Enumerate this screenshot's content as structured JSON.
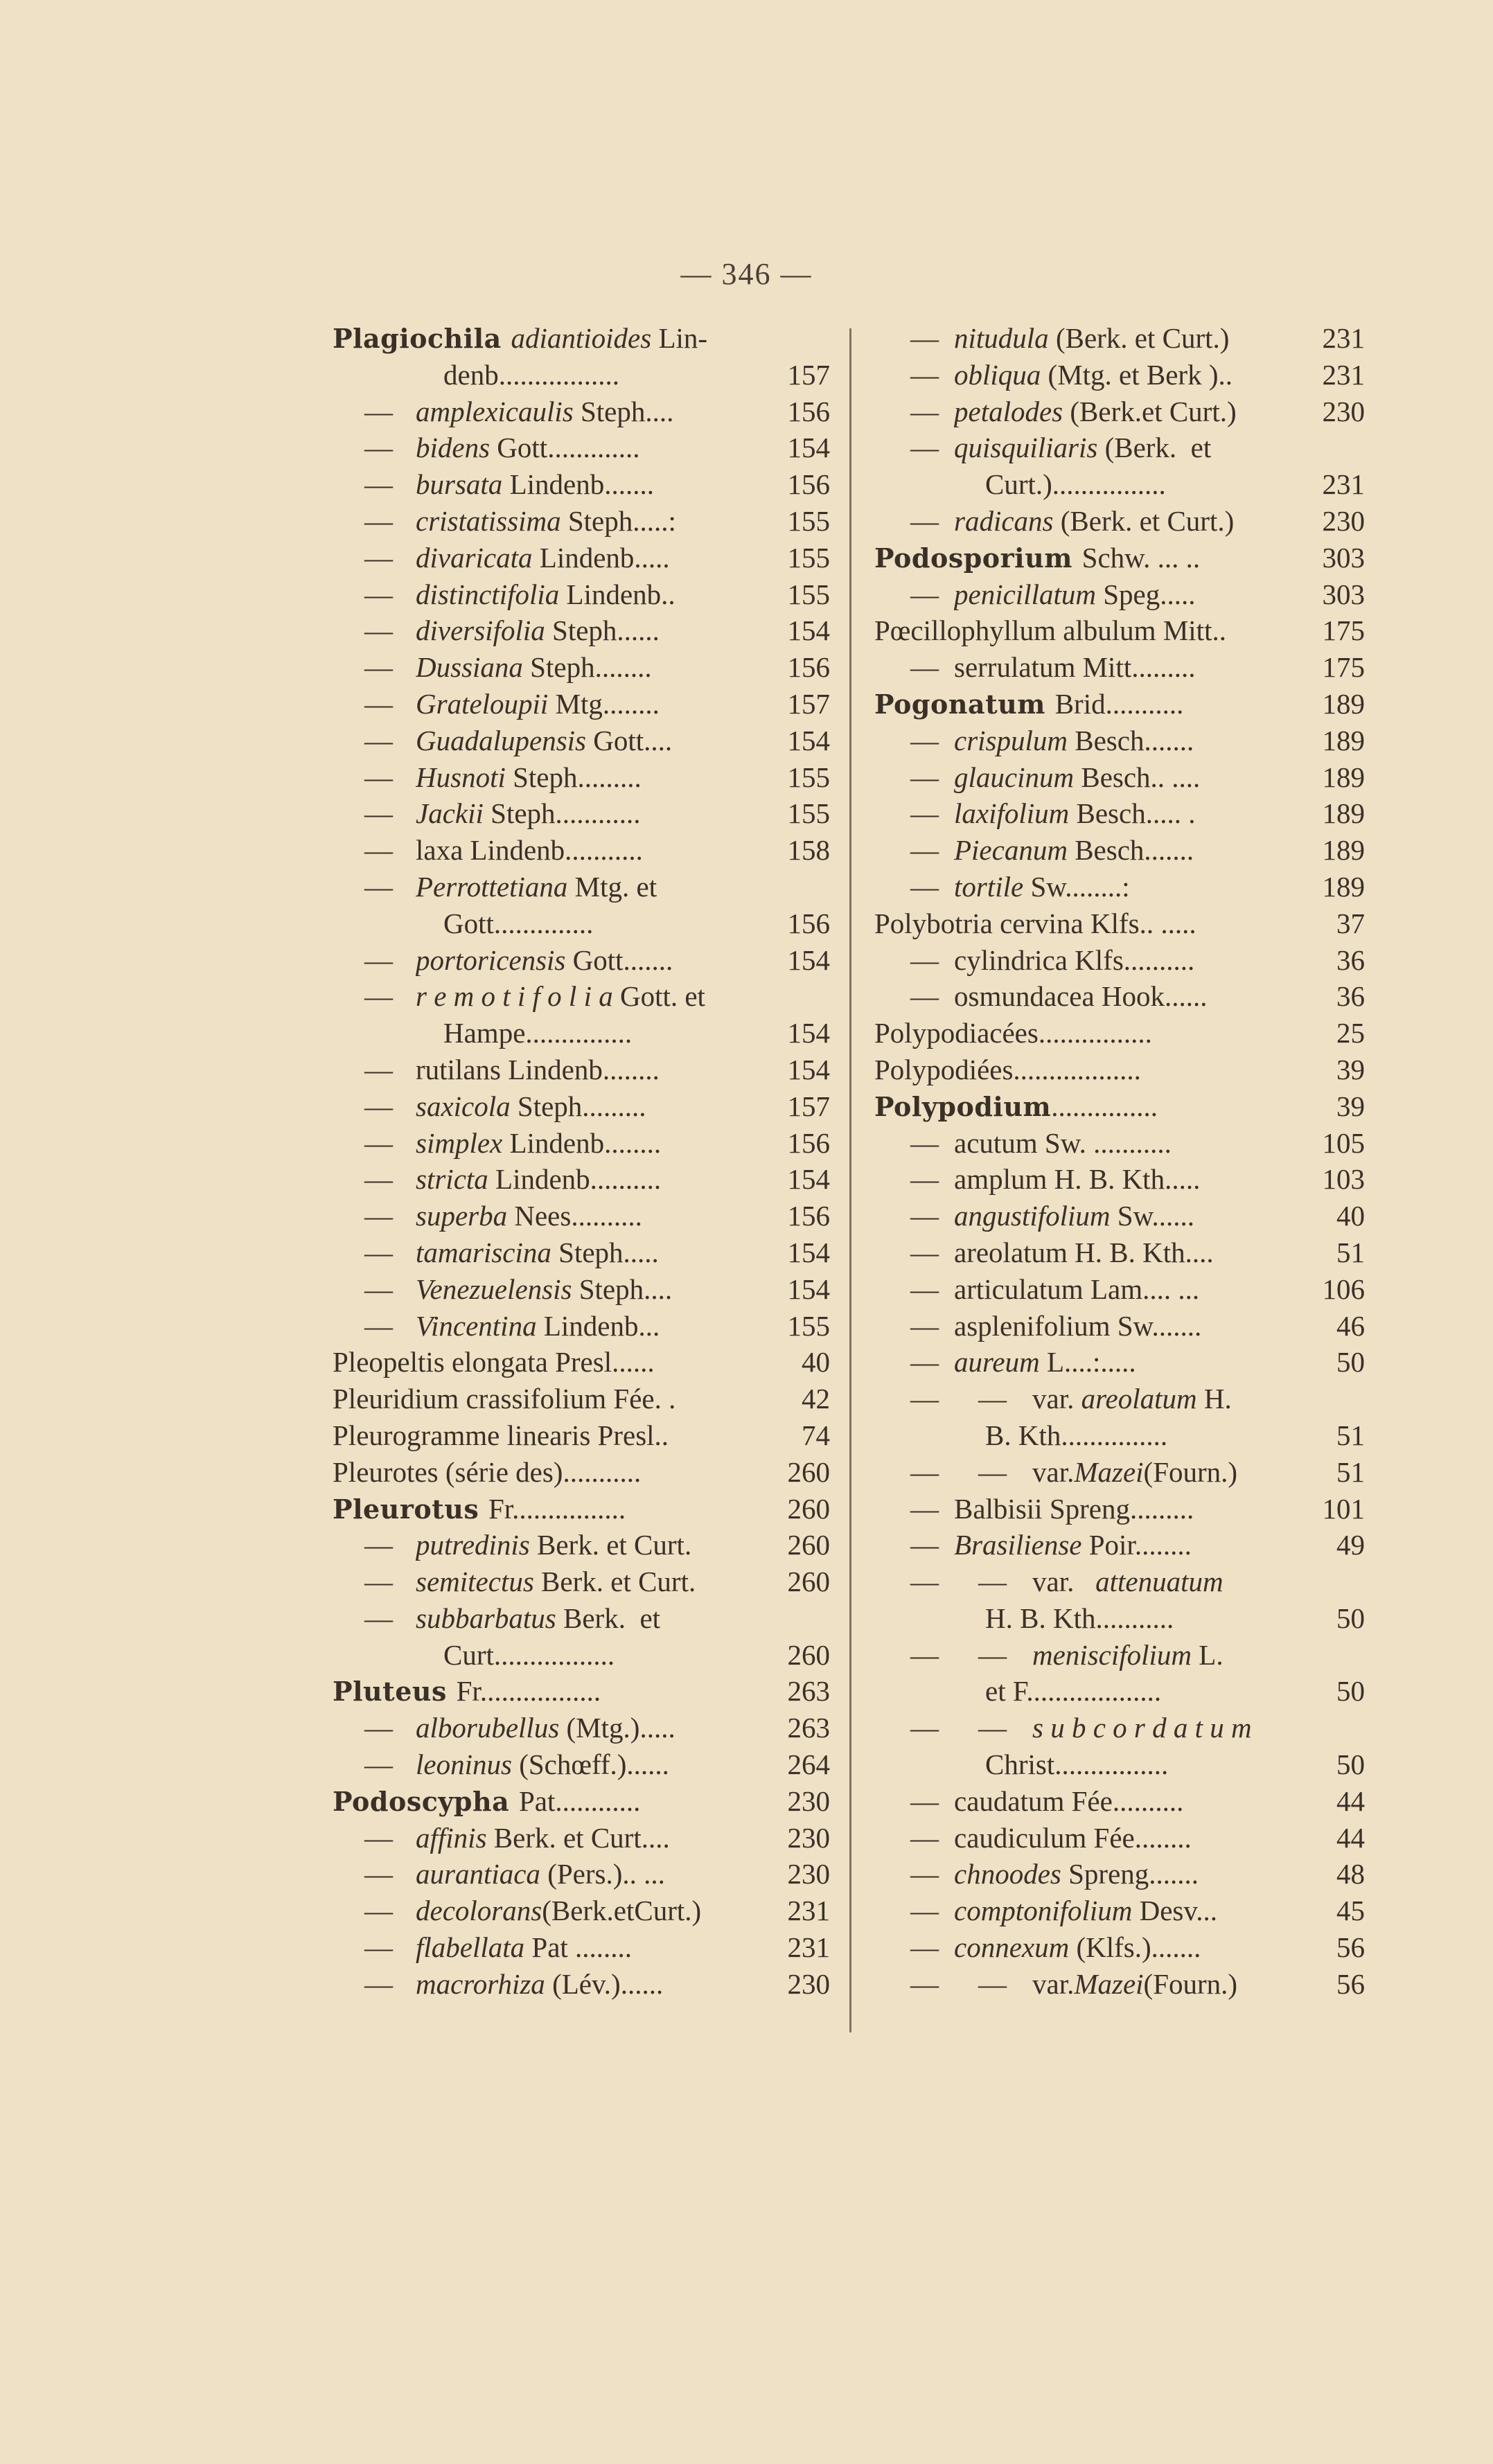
{
  "page_number": "— 346 —",
  "colors": {
    "paper": "#eee1c6",
    "ink": "#3b3027"
  },
  "left_column": [
    {
      "t": "main",
      "p": [
        [
          "b",
          "Plagiochila "
        ],
        [
          "i",
          "adiantioides "
        ],
        [
          "r",
          "Lin-"
        ]
      ],
      "n": ""
    },
    {
      "t": "cont",
      "p": [
        [
          "r",
          "denb................."
        ]
      ],
      "n": "157"
    },
    {
      "t": "sub",
      "p": [
        [
          "i",
          "amplexicaulis "
        ],
        [
          "r",
          "Steph...."
        ]
      ],
      "n": "156"
    },
    {
      "t": "sub",
      "p": [
        [
          "i",
          "bidens "
        ],
        [
          "r",
          "Gott............."
        ]
      ],
      "n": "154"
    },
    {
      "t": "sub",
      "p": [
        [
          "i",
          "bursata "
        ],
        [
          "r",
          "Lindenb......."
        ]
      ],
      "n": "156"
    },
    {
      "t": "sub",
      "p": [
        [
          "i",
          "cristatissima "
        ],
        [
          "r",
          "Steph.....:"
        ]
      ],
      "n": "155"
    },
    {
      "t": "sub",
      "p": [
        [
          "i",
          "divaricata "
        ],
        [
          "r",
          "Lindenb....."
        ]
      ],
      "n": "155"
    },
    {
      "t": "sub",
      "p": [
        [
          "i",
          "distinctifolia "
        ],
        [
          "r",
          "Lindenb.."
        ]
      ],
      "n": "155"
    },
    {
      "t": "sub",
      "p": [
        [
          "i",
          "diversifolia "
        ],
        [
          "r",
          "Steph......"
        ]
      ],
      "n": "154"
    },
    {
      "t": "sub",
      "p": [
        [
          "i",
          "Dussiana "
        ],
        [
          "r",
          "Steph........"
        ]
      ],
      "n": "156"
    },
    {
      "t": "sub",
      "p": [
        [
          "i",
          "Grateloupii "
        ],
        [
          "r",
          "Mtg........"
        ]
      ],
      "n": "157"
    },
    {
      "t": "sub",
      "p": [
        [
          "i",
          "Guadalupensis "
        ],
        [
          "r",
          "Gott...."
        ]
      ],
      "n": "154"
    },
    {
      "t": "sub",
      "p": [
        [
          "i",
          "Husnoti "
        ],
        [
          "r",
          "Steph........."
        ]
      ],
      "n": "155"
    },
    {
      "t": "sub",
      "p": [
        [
          "i",
          "Jackii "
        ],
        [
          "r",
          "Steph............"
        ]
      ],
      "n": "155"
    },
    {
      "t": "sub",
      "p": [
        [
          "r",
          "laxa Lindenb..........."
        ]
      ],
      "n": "158"
    },
    {
      "t": "sub",
      "p": [
        [
          "i",
          "Perrottetiana "
        ],
        [
          "r",
          "Mtg. et"
        ]
      ],
      "n": ""
    },
    {
      "t": "cont",
      "p": [
        [
          "r",
          "Gott.............."
        ]
      ],
      "n": "156"
    },
    {
      "t": "sub",
      "p": [
        [
          "i",
          "portoricensis "
        ],
        [
          "r",
          "Gott......."
        ]
      ],
      "n": "154"
    },
    {
      "t": "sub",
      "p": [
        [
          "i",
          "r e m o t i f o l i a "
        ],
        [
          "r",
          "Gott. et"
        ]
      ],
      "n": ""
    },
    {
      "t": "cont",
      "p": [
        [
          "r",
          "Hampe..............."
        ]
      ],
      "n": "154"
    },
    {
      "t": "sub",
      "p": [
        [
          "r",
          "rutilans Lindenb........"
        ]
      ],
      "n": "154"
    },
    {
      "t": "sub",
      "p": [
        [
          "i",
          "saxicola "
        ],
        [
          "r",
          "Steph........."
        ]
      ],
      "n": "157"
    },
    {
      "t": "sub",
      "p": [
        [
          "i",
          "simplex "
        ],
        [
          "r",
          "Lindenb........"
        ]
      ],
      "n": "156"
    },
    {
      "t": "sub",
      "p": [
        [
          "i",
          "stricta "
        ],
        [
          "r",
          "Lindenb.........."
        ]
      ],
      "n": "154"
    },
    {
      "t": "sub",
      "p": [
        [
          "i",
          "superba "
        ],
        [
          "r",
          "Nees.........."
        ]
      ],
      "n": "156"
    },
    {
      "t": "sub",
      "p": [
        [
          "i",
          "tamariscina "
        ],
        [
          "r",
          "Steph....."
        ]
      ],
      "n": "154"
    },
    {
      "t": "sub",
      "p": [
        [
          "i",
          "Venezuelensis "
        ],
        [
          "r",
          "Steph...."
        ]
      ],
      "n": "154"
    },
    {
      "t": "sub",
      "p": [
        [
          "i",
          "Vincentina "
        ],
        [
          "r",
          "Lindenb..."
        ]
      ],
      "n": "155"
    },
    {
      "t": "main",
      "p": [
        [
          "r",
          "Pleopeltis elongata Presl......"
        ]
      ],
      "n": "40"
    },
    {
      "t": "main",
      "p": [
        [
          "r",
          "Pleuridium crassifolium Fée. ."
        ]
      ],
      "n": "42"
    },
    {
      "t": "main",
      "p": [
        [
          "r",
          "Pleurogramme linearis Presl.."
        ]
      ],
      "n": "74"
    },
    {
      "t": "main",
      "p": [
        [
          "r",
          "Pleurotes (série des)..........."
        ]
      ],
      "n": "260"
    },
    {
      "t": "main",
      "p": [
        [
          "b",
          "Pleurotus "
        ],
        [
          "r",
          "Fr................"
        ]
      ],
      "n": "260"
    },
    {
      "t": "sub",
      "p": [
        [
          "i",
          "putredinis "
        ],
        [
          "r",
          "Berk. et Curt."
        ]
      ],
      "n": "260"
    },
    {
      "t": "sub",
      "p": [
        [
          "i",
          "semitectus "
        ],
        [
          "r",
          "Berk. et Curt."
        ]
      ],
      "n": "260"
    },
    {
      "t": "sub",
      "p": [
        [
          "i",
          "subbarbatus "
        ],
        [
          "r",
          "Berk.  et"
        ]
      ],
      "n": ""
    },
    {
      "t": "cont",
      "p": [
        [
          "r",
          "Curt................."
        ]
      ],
      "n": "260"
    },
    {
      "t": "main",
      "p": [
        [
          "b",
          "Pluteus "
        ],
        [
          "r",
          "Fr................."
        ]
      ],
      "n": "263"
    },
    {
      "t": "sub",
      "p": [
        [
          "i",
          "alborubellus "
        ],
        [
          "r",
          "(Mtg.)....."
        ]
      ],
      "n": "263"
    },
    {
      "t": "sub",
      "p": [
        [
          "i",
          "leoninus "
        ],
        [
          "r",
          "(Schœff.)......"
        ]
      ],
      "n": "264"
    },
    {
      "t": "main",
      "p": [
        [
          "b",
          "Podoscypha "
        ],
        [
          "r",
          "Pat............"
        ]
      ],
      "n": "230"
    },
    {
      "t": "sub",
      "p": [
        [
          "i",
          "affinis "
        ],
        [
          "r",
          "Berk. et Curt...."
        ]
      ],
      "n": "230"
    },
    {
      "t": "sub",
      "p": [
        [
          "i",
          "aurantiaca "
        ],
        [
          "r",
          "(Pers.).. ..."
        ]
      ],
      "n": "230"
    },
    {
      "t": "sub",
      "p": [
        [
          "i",
          "decolorans"
        ],
        [
          "r",
          "(Berk.etCurt.)"
        ]
      ],
      "n": "231"
    },
    {
      "t": "sub",
      "p": [
        [
          "i",
          "flabellata "
        ],
        [
          "r",
          "Pat ........"
        ]
      ],
      "n": "231"
    },
    {
      "t": "sub",
      "p": [
        [
          "i",
          "macrorhiza "
        ],
        [
          "r",
          "(Lév.)......"
        ]
      ],
      "n": "230"
    }
  ],
  "right_column": [
    {
      "t": "sub",
      "p": [
        [
          "i",
          "nitudula "
        ],
        [
          "r",
          "(Berk. et Curt.)"
        ]
      ],
      "n": "231"
    },
    {
      "t": "sub",
      "p": [
        [
          "i",
          "obliqua "
        ],
        [
          "r",
          "(Mtg. et Berk ).."
        ]
      ],
      "n": "231"
    },
    {
      "t": "sub",
      "p": [
        [
          "i",
          "petalodes "
        ],
        [
          "r",
          "(Berk.et Curt.)"
        ]
      ],
      "n": "230"
    },
    {
      "t": "sub",
      "p": [
        [
          "i",
          "quisquiliaris "
        ],
        [
          "r",
          "(Berk.  et"
        ]
      ],
      "n": ""
    },
    {
      "t": "cont",
      "p": [
        [
          "r",
          "Curt.)................"
        ]
      ],
      "n": "231"
    },
    {
      "t": "sub",
      "p": [
        [
          "i",
          "radicans "
        ],
        [
          "r",
          "(Berk. et Curt.)"
        ]
      ],
      "n": "230"
    },
    {
      "t": "main",
      "p": [
        [
          "b",
          "Podosporium "
        ],
        [
          "r",
          "Schw. ... .."
        ]
      ],
      "n": "303"
    },
    {
      "t": "sub",
      "p": [
        [
          "i",
          "penicillatum "
        ],
        [
          "r",
          "Speg....."
        ]
      ],
      "n": "303"
    },
    {
      "t": "main",
      "p": [
        [
          "r",
          "Pœcillophyllum albulum Mitt.."
        ]
      ],
      "n": "175"
    },
    {
      "t": "sub",
      "p": [
        [
          "r",
          "serrulatum Mitt........."
        ]
      ],
      "n": "175"
    },
    {
      "t": "main",
      "p": [
        [
          "b",
          "Pogonatum "
        ],
        [
          "r",
          "Brid..........."
        ]
      ],
      "n": "189"
    },
    {
      "t": "sub",
      "p": [
        [
          "i",
          "crispulum "
        ],
        [
          "r",
          "Besch......."
        ]
      ],
      "n": "189"
    },
    {
      "t": "sub",
      "p": [
        [
          "i",
          "glaucinum "
        ],
        [
          "r",
          "Besch.. ...."
        ]
      ],
      "n": "189"
    },
    {
      "t": "sub",
      "p": [
        [
          "i",
          "laxifolium "
        ],
        [
          "r",
          "Besch..... ."
        ]
      ],
      "n": "189"
    },
    {
      "t": "sub",
      "p": [
        [
          "i",
          "Piecanum "
        ],
        [
          "r",
          "Besch......."
        ]
      ],
      "n": "189"
    },
    {
      "t": "sub",
      "p": [
        [
          "i",
          "tortile "
        ],
        [
          "r",
          "Sw........:"
        ]
      ],
      "n": "189"
    },
    {
      "t": "main",
      "p": [
        [
          "r",
          "Polybotria cervina Klfs.. ....."
        ]
      ],
      "n": "37"
    },
    {
      "t": "sub",
      "p": [
        [
          "r",
          "cylindrica Klfs.........."
        ]
      ],
      "n": "36"
    },
    {
      "t": "sub",
      "p": [
        [
          "r",
          "osmundacea Hook......"
        ]
      ],
      "n": "36"
    },
    {
      "t": "main",
      "p": [
        [
          "r",
          "Polypodiacées................"
        ]
      ],
      "n": "25"
    },
    {
      "t": "main",
      "p": [
        [
          "r",
          "Polypodiées.................."
        ]
      ],
      "n": "39"
    },
    {
      "t": "main",
      "p": [
        [
          "b",
          "Polypodium"
        ],
        [
          "r",
          "..............."
        ]
      ],
      "n": "39"
    },
    {
      "t": "sub",
      "p": [
        [
          "r",
          "acutum Sw. ..........."
        ]
      ],
      "n": "105"
    },
    {
      "t": "sub",
      "p": [
        [
          "r",
          "amplum H. B. Kth....."
        ]
      ],
      "n": "103"
    },
    {
      "t": "sub",
      "p": [
        [
          "i",
          "angustifolium "
        ],
        [
          "r",
          "Sw......"
        ]
      ],
      "n": "40"
    },
    {
      "t": "sub",
      "p": [
        [
          "r",
          "areolatum H. B. Kth...."
        ]
      ],
      "n": "51"
    },
    {
      "t": "sub",
      "p": [
        [
          "r",
          "articulatum Lam.... ..."
        ]
      ],
      "n": "106"
    },
    {
      "t": "sub",
      "p": [
        [
          "r",
          "asplenifolium Sw......."
        ]
      ],
      "n": "46"
    },
    {
      "t": "sub",
      "p": [
        [
          "i",
          "aureum "
        ],
        [
          "r",
          "L....:....."
        ]
      ],
      "n": "50"
    },
    {
      "t": "subsub",
      "p": [
        [
          "r",
          "var. "
        ],
        [
          "i",
          "areolatum "
        ],
        [
          "r",
          "H."
        ]
      ],
      "n": ""
    },
    {
      "t": "cont",
      "p": [
        [
          "r",
          "B. Kth..............."
        ]
      ],
      "n": "51"
    },
    {
      "t": "subsub",
      "p": [
        [
          "r",
          "var."
        ],
        [
          "i",
          "Mazei"
        ],
        [
          "r",
          "(Fourn.)"
        ]
      ],
      "n": "51"
    },
    {
      "t": "sub",
      "p": [
        [
          "r",
          "Balbisii Spreng........."
        ]
      ],
      "n": "101"
    },
    {
      "t": "sub",
      "p": [
        [
          "i",
          "Brasiliense "
        ],
        [
          "r",
          "Poir........"
        ]
      ],
      "n": "49"
    },
    {
      "t": "subsub",
      "p": [
        [
          "r",
          "var.   "
        ],
        [
          "i",
          "attenuatum"
        ]
      ],
      "n": ""
    },
    {
      "t": "cont",
      "p": [
        [
          "r",
          "H. B. Kth..........."
        ]
      ],
      "n": "50"
    },
    {
      "t": "subsub",
      "p": [
        [
          "i",
          "meniscifolium "
        ],
        [
          "r",
          "L."
        ]
      ],
      "n": ""
    },
    {
      "t": "cont",
      "p": [
        [
          "r",
          "et F..................."
        ]
      ],
      "n": "50"
    },
    {
      "t": "subsub",
      "p": [
        [
          "i",
          "s u b c o r d a t u m"
        ]
      ],
      "n": ""
    },
    {
      "t": "cont",
      "p": [
        [
          "r",
          "Christ................"
        ]
      ],
      "n": "50"
    },
    {
      "t": "sub",
      "p": [
        [
          "r",
          "caudatum Fée.........."
        ]
      ],
      "n": "44"
    },
    {
      "t": "sub",
      "p": [
        [
          "r",
          "caudiculum Fée........"
        ]
      ],
      "n": "44"
    },
    {
      "t": "sub",
      "p": [
        [
          "i",
          "chnoodes "
        ],
        [
          "r",
          "Spreng......."
        ]
      ],
      "n": "48"
    },
    {
      "t": "sub",
      "p": [
        [
          "i",
          "comptonifolium "
        ],
        [
          "r",
          "Desv..."
        ]
      ],
      "n": "45"
    },
    {
      "t": "sub",
      "p": [
        [
          "i",
          "connexum "
        ],
        [
          "r",
          "(Klfs.)......."
        ]
      ],
      "n": "56"
    },
    {
      "t": "subsub",
      "p": [
        [
          "r",
          "var."
        ],
        [
          "i",
          "Mazei"
        ],
        [
          "r",
          "(Fourn.)"
        ]
      ],
      "n": "56"
    }
  ],
  "dash": "—"
}
